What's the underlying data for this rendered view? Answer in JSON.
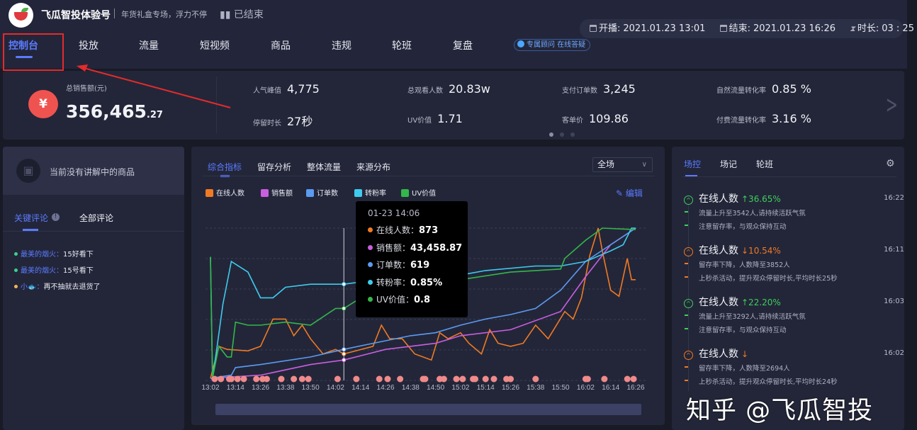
{
  "header": {
    "brand": "飞瓜智投体验号",
    "slogan": "年货礼盒专场，浮力不停",
    "status": "已结束",
    "nav": [
      "控制台",
      "投放",
      "流量",
      "短视频",
      "商品",
      "违规",
      "轮班",
      "复盘"
    ],
    "active_nav": "控制台",
    "advisor": "专属顾问 在线答疑",
    "start_label": "开播:",
    "start": "2021.01.23 13:01",
    "end_label": "结束:",
    "end": "2021.01.23 16:26",
    "duration_label": "时长:",
    "duration": "03 : 25"
  },
  "stats": {
    "sales_label": "总销售额(元)",
    "sales_int": "356,465",
    "sales_dec": ".27",
    "metrics": [
      {
        "label": "人气峰值",
        "value": "4,775"
      },
      {
        "label": "停留时长",
        "value": "27秒"
      },
      {
        "label": "总观看人数",
        "value": "20.83w"
      },
      {
        "label": "UV价值",
        "value": "1.71"
      },
      {
        "label": "支付订单数",
        "value": "3,245"
      },
      {
        "label": "客单价",
        "value": "109.86"
      },
      {
        "label": "自然流量转化率",
        "value": "0.85 %"
      },
      {
        "label": "付费流量转化率",
        "value": "3.16 %"
      }
    ],
    "page": 1,
    "pages": 3
  },
  "left": {
    "current_product": "当前没有讲解中的商品",
    "tabs": [
      "关键评论",
      "全部评论"
    ],
    "comments": [
      {
        "user": "最美的烟火：",
        "text": "15好看下",
        "dot": "#3ecf8e"
      },
      {
        "user": "最美的烟火：",
        "text": "15号看下",
        "dot": "#3ecf8e"
      },
      {
        "user": "小🐟：",
        "text": "再不抽就去退货了",
        "dot": "#f0b35a"
      }
    ]
  },
  "middle": {
    "tabs": [
      "综合指标",
      "留存分析",
      "整体流量",
      "来源分布"
    ],
    "select": "全场",
    "edit": "编辑",
    "tooltip": {
      "time": "01-23 14:06",
      "rows": [
        {
          "label": "在线人数：",
          "value": "873"
        },
        {
          "label": "销售额：",
          "value": "43,458.87"
        },
        {
          "label": "订单数：",
          "value": "619"
        },
        {
          "label": "转粉率：",
          "value": "0.85%"
        },
        {
          "label": "UV价值：",
          "value": "0.8"
        }
      ]
    }
  },
  "chart_data": {
    "type": "line",
    "title": "",
    "xlabel": "",
    "ylabel": "",
    "y_axis": "hidden, each series normalized to 0-100 of its own range",
    "grid": "horizontal dashed",
    "legend": "top-left",
    "x_ticks": [
      "13:02",
      "13:14",
      "13:26",
      "13:38",
      "13:50",
      "14:02",
      "14:14",
      "14:26",
      "14:38",
      "14:50",
      "15:02",
      "15:14",
      "15:26",
      "15:38",
      "15:50",
      "16:02",
      "16:14",
      "16:26"
    ],
    "cursor_time": "14:06",
    "series": [
      {
        "name": "在线人数",
        "color": "#f07a22",
        "points": [
          [
            "13:02",
            1
          ],
          [
            "13:06",
            22
          ],
          [
            "13:10",
            20
          ],
          [
            "13:20",
            19
          ],
          [
            "13:26",
            22
          ],
          [
            "13:32",
            40
          ],
          [
            "13:38",
            40
          ],
          [
            "13:42",
            29
          ],
          [
            "13:46",
            36
          ],
          [
            "13:50",
            27
          ],
          [
            "13:56",
            17
          ],
          [
            "14:02",
            20
          ],
          [
            "14:06",
            17
          ],
          [
            "14:20",
            22
          ],
          [
            "14:24",
            36
          ],
          [
            "14:28",
            27
          ],
          [
            "14:34",
            27
          ],
          [
            "14:40",
            17
          ],
          [
            "14:48",
            13
          ],
          [
            "14:52",
            31
          ],
          [
            "14:56",
            27
          ],
          [
            "15:02",
            31
          ],
          [
            "15:06",
            24
          ],
          [
            "15:12",
            17
          ],
          [
            "15:16",
            33
          ],
          [
            "15:20",
            24
          ],
          [
            "15:26",
            22
          ],
          [
            "15:32",
            24
          ],
          [
            "15:38",
            36
          ],
          [
            "15:44",
            27
          ],
          [
            "15:52",
            45
          ],
          [
            "15:56",
            40
          ],
          [
            "16:00",
            54
          ],
          [
            "16:04",
            82
          ],
          [
            "16:08",
            100
          ],
          [
            "16:10",
            85
          ],
          [
            "16:14",
            59
          ],
          [
            "16:18",
            55
          ],
          [
            "16:22",
            80
          ],
          [
            "16:24",
            66
          ],
          [
            "16:26",
            66
          ]
        ]
      },
      {
        "name": "销售额",
        "color": "#c95ee0",
        "points": [
          [
            "13:02",
            1
          ],
          [
            "13:26",
            3
          ],
          [
            "13:50",
            10
          ],
          [
            "14:06",
            13
          ],
          [
            "14:26",
            20
          ],
          [
            "14:50",
            24
          ],
          [
            "15:02",
            29
          ],
          [
            "15:26",
            33
          ],
          [
            "15:50",
            45
          ],
          [
            "16:02",
            68
          ],
          [
            "16:14",
            89
          ],
          [
            "16:26",
            100
          ]
        ]
      },
      {
        "name": "订单数",
        "color": "#5b9bf0",
        "points": [
          [
            "13:02",
            1
          ],
          [
            "13:12",
            3
          ],
          [
            "13:14",
            8
          ],
          [
            "13:26",
            10
          ],
          [
            "13:50",
            15
          ],
          [
            "14:06",
            20
          ],
          [
            "14:20",
            24
          ],
          [
            "14:38",
            29
          ],
          [
            "14:50",
            31
          ],
          [
            "15:02",
            36
          ],
          [
            "15:14",
            40
          ],
          [
            "15:26",
            43
          ],
          [
            "15:38",
            47
          ],
          [
            "15:50",
            59
          ],
          [
            "16:02",
            78
          ],
          [
            "16:14",
            89
          ],
          [
            "16:26",
            100
          ]
        ]
      },
      {
        "name": "转粉率",
        "color": "#3fcbee",
        "points": [
          [
            "13:02",
            81
          ],
          [
            "13:03",
            1
          ],
          [
            "13:05",
            20
          ],
          [
            "13:08",
            50
          ],
          [
            "13:12",
            78
          ],
          [
            "13:20",
            71
          ],
          [
            "13:26",
            54
          ],
          [
            "13:32",
            54
          ],
          [
            "13:38",
            61
          ],
          [
            "13:50",
            63
          ],
          [
            "14:06",
            63
          ],
          [
            "14:50",
            71
          ],
          [
            "15:02",
            69
          ],
          [
            "15:14",
            72
          ],
          [
            "15:38",
            75
          ],
          [
            "15:50",
            75
          ],
          [
            "16:02",
            78
          ],
          [
            "16:14",
            85
          ],
          [
            "16:20",
            89
          ],
          [
            "16:24",
            100
          ],
          [
            "16:26",
            100
          ]
        ]
      },
      {
        "name": "UV价值",
        "color": "#33b74a",
        "points": [
          [
            "13:02",
            81
          ],
          [
            "13:03",
            1
          ],
          [
            "13:06",
            22
          ],
          [
            "13:10",
            15
          ],
          [
            "13:12",
            15
          ],
          [
            "13:14",
            38
          ],
          [
            "13:20",
            36
          ],
          [
            "13:26",
            36
          ],
          [
            "13:38",
            38
          ],
          [
            "13:50",
            36
          ],
          [
            "14:02",
            47
          ],
          [
            "14:06",
            47
          ],
          [
            "14:20",
            59
          ],
          [
            "14:50",
            68
          ],
          [
            "15:02",
            66
          ],
          [
            "15:26",
            71
          ],
          [
            "15:50",
            73
          ],
          [
            "15:52",
            80
          ],
          [
            "16:02",
            92
          ],
          [
            "16:10",
            100
          ],
          [
            "16:26",
            99
          ]
        ]
      }
    ],
    "comment_markers": [
      "13:04",
      "13:07",
      "13:11",
      "13:12",
      "13:15",
      "13:18",
      "13:24",
      "13:27",
      "13:29",
      "13:36",
      "13:42",
      "13:46",
      "13:49",
      "14:03",
      "14:12",
      "14:23",
      "14:27",
      "14:33",
      "14:44",
      "14:45",
      "14:52",
      "14:54",
      "15:00",
      "15:03",
      "15:08",
      "15:09",
      "15:14",
      "15:18",
      "15:24",
      "15:26",
      "15:38",
      "16:02",
      "16:03",
      "16:11",
      "16:22",
      "16:25"
    ],
    "marker_color": "#f08a8a"
  },
  "right": {
    "tabs": [
      "场控",
      "场记",
      "轮班"
    ],
    "events": [
      {
        "title": "在线人数",
        "change": "↑36.65%",
        "dir": "up",
        "time": "16:22",
        "lines": [
          "流量上升至3542人,请持续活跃气氛",
          "注意留存率，与观众保持互动"
        ]
      },
      {
        "title": "在线人数",
        "change": "↓10.54%",
        "dir": "down",
        "time": "16:11",
        "lines": [
          "留存率下降，人数降至3852人",
          "上秒杀活动，提升观众停留时长,平均时长25秒"
        ]
      },
      {
        "title": "在线人数",
        "change": "↑22.20%",
        "dir": "up",
        "time": "16:03",
        "lines": [
          "流量上升至3292人,请持续活跃气氛",
          "注意留存率，与观众保持互动"
        ]
      },
      {
        "title": "在线人数",
        "change": "↓",
        "dir": "down",
        "time": "16:02",
        "lines": [
          "留存率下降，人数降至2694人",
          "上秒杀活动，提升观众停留时长,平均时长24秒"
        ]
      }
    ],
    "up_color": "#3ecf5a",
    "down_color": "#f07a22"
  },
  "watermark": "知乎 @飞瓜智投"
}
